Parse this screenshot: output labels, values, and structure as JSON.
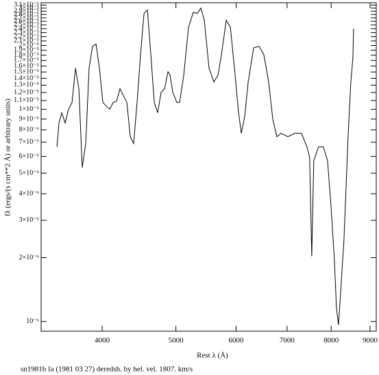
{
  "chart_data": {
    "type": "line",
    "xlog": true,
    "ylog": true,
    "color": "#000000",
    "x_label": "Rest λ (Å)",
    "y_label": "fλ (ergs/(s cm**2 Å) or arbitrary units)",
    "caption": "sn1981b Ia (1981 03 27) deredsh. by hel. vel.  1807. km/s",
    "xlim": [
      3325,
      9170
    ],
    "ylim": [
      9e-07,
      3.18e-05
    ],
    "xticks": [
      4000,
      5000,
      6000,
      7000,
      8000,
      9000
    ],
    "yticks": [
      {
        "value": 1e-06,
        "label": "10⁻⁶"
      },
      {
        "value": 2e-06,
        "label": "2×10⁻⁶"
      },
      {
        "value": 3e-06,
        "label": "3×10⁻⁶"
      },
      {
        "value": 4e-06,
        "label": "4×10⁻⁶"
      },
      {
        "value": 5e-06,
        "label": "5×10⁻⁶"
      },
      {
        "value": 6e-06,
        "label": "6×10⁻⁶"
      },
      {
        "value": 7e-06,
        "label": "7×10⁻⁶"
      },
      {
        "value": 8e-06,
        "label": "8×10⁻⁶"
      },
      {
        "value": 9e-06,
        "label": "9×10⁻⁶"
      },
      {
        "value": 1e-05,
        "label": "1×10⁻⁵"
      },
      {
        "value": 1.1e-05,
        "label": "1.1×10⁻⁵"
      },
      {
        "value": 1.2e-05,
        "label": "1.2×10⁻⁵"
      },
      {
        "value": 1.3e-05,
        "label": "1.3×10⁻⁵"
      },
      {
        "value": 1.4e-05,
        "label": "1.4×10⁻⁵"
      },
      {
        "value": 1.5e-05,
        "label": "1.5×10⁻⁵"
      },
      {
        "value": 1.6e-05,
        "label": "1.6×10⁻⁵"
      },
      {
        "value": 1.7e-05,
        "label": "1.7×10⁻⁵"
      },
      {
        "value": 1.8e-05,
        "label": "1.8×10⁻⁵"
      },
      {
        "value": 1.9e-05,
        "label": "1.9×10⁻⁵"
      },
      {
        "value": 2e-05,
        "label": "2×10⁻⁵"
      },
      {
        "value": 2.1e-05,
        "label": "2.1×10⁻⁵"
      },
      {
        "value": 2.2e-05,
        "label": "2.2×10⁻⁵"
      },
      {
        "value": 2.3e-05,
        "label": "2.3×10⁻⁵"
      },
      {
        "value": 2.4e-05,
        "label": "2.4×10⁻⁵"
      },
      {
        "value": 2.5e-05,
        "label": "2.5×10⁻⁵"
      },
      {
        "value": 2.6e-05,
        "label": "2.6×10⁻⁵"
      },
      {
        "value": 2.7e-05,
        "label": "2.7×10⁻⁵"
      },
      {
        "value": 2.8e-05,
        "label": "2.8×10⁻⁵"
      },
      {
        "value": 2.9e-05,
        "label": "2.9×10⁻⁵"
      },
      {
        "value": 3e-05,
        "label": "3×10⁻⁵"
      },
      {
        "value": 3.1e-05,
        "label": "3.1×10⁻⁵"
      }
    ],
    "x": [
      3488,
      3509,
      3539,
      3576,
      3613,
      3651,
      3689,
      3728,
      3766,
      3806,
      3845,
      3885,
      3926,
      3967,
      4008,
      4050,
      4092,
      4135,
      4178,
      4222,
      4266,
      4310,
      4355,
      4400,
      4446,
      4493,
      4540,
      4587,
      4635,
      4683,
      4732,
      4781,
      4831,
      4882,
      4912,
      4953,
      5015,
      5057,
      5120,
      5195,
      5271,
      5334,
      5393,
      5449,
      5528,
      5610,
      5680,
      5739,
      5823,
      5896,
      5970,
      6045,
      6095,
      6158,
      6223,
      6327,
      6433,
      6526,
      6621,
      6705,
      6788,
      6874,
      7017,
      7165,
      7311,
      7434,
      7495,
      7543,
      7590,
      7701,
      7814,
      7912,
      7995,
      8078,
      8128,
      8179,
      8230,
      8316,
      8420,
      8490,
      8543,
      8561
    ],
    "values": [
      6.65e-06,
      8.62e-06,
      9.64e-06,
      8.62e-06,
      1e-05,
      1.077e-05,
      1.562e-05,
      1.25e-05,
      5.32e-06,
      6.9e-06,
      1.562e-05,
      1.98e-05,
      2.03e-05,
      1.562e-05,
      1.077e-05,
      1.038e-05,
      1e-05,
      1.077e-05,
      1.093e-05,
      1.25e-05,
      1.16e-05,
      1.077e-05,
      7.43e-06,
      6.9e-06,
      1.077e-05,
      1.81e-05,
      2.83e-05,
      2.94e-05,
      1.81e-05,
      1.077e-05,
      9.64e-06,
      1.204e-05,
      1.25e-05,
      1.504e-05,
      1.45e-05,
      1.204e-05,
      1.077e-05,
      1.077e-05,
      1.45e-05,
      2.44e-05,
      2.87e-05,
      2.83e-05,
      3e-05,
      2.63e-05,
      1.562e-05,
      1.346e-05,
      1.45e-05,
      1.81e-05,
      2.63e-05,
      2.44e-05,
      1.562e-05,
      9.64e-06,
      7.71e-06,
      9.28e-06,
      1.346e-05,
      1.95e-05,
      1.98e-05,
      1.81e-05,
      1.346e-05,
      8.95e-06,
      7.43e-06,
      7.71e-06,
      7.43e-06,
      7.71e-06,
      7.71e-06,
      6.65e-06,
      5.94e-06,
      2.03e-06,
      5.73e-06,
      6.65e-06,
      6.65e-06,
      5.73e-06,
      3.53e-06,
      1.95e-06,
      1.16e-06,
      9.64e-07,
      1.35e-06,
      2.44e-06,
      7.43e-06,
      1.346e-05,
      1.746e-05,
      2.4e-05
    ]
  }
}
